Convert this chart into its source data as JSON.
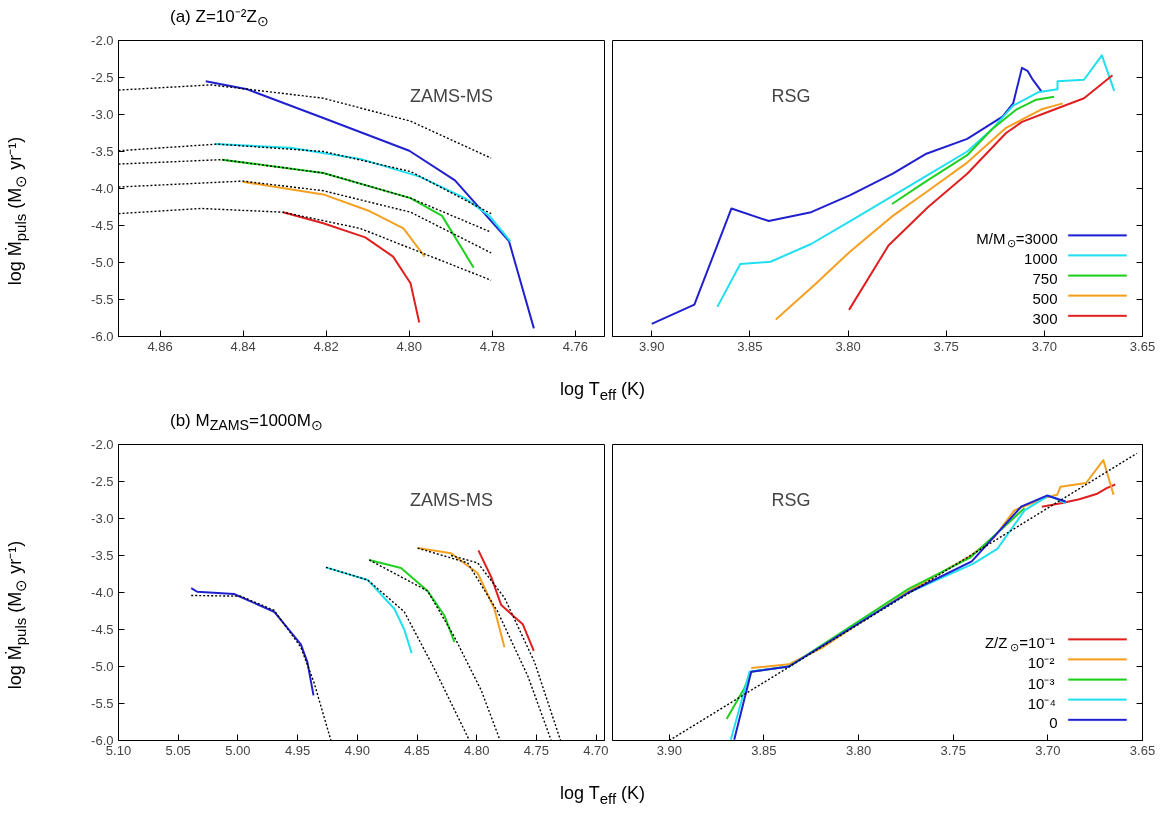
{
  "chart_data": [
    {
      "type": "line",
      "title": "(a) Z=10⁻²Z$_{⊙}$",
      "ylabel": "log Ṁ$_{puls}$ (M$_{⊙}$ yr⁻¹)",
      "annotations": [
        "ZAMS-MS"
      ],
      "grid": false,
      "legend": false,
      "xlim": [
        4.87,
        4.753
      ],
      "xticks": [
        4.86,
        4.84,
        4.82,
        {
          "value": 4.8,
          "label": "4.80"
        },
        4.78,
        4.76
      ],
      "ylim": [
        -6,
        -2
      ],
      "yticks": [
        {
          "value": -6,
          "label": "-6.0"
        },
        -5.5,
        {
          "value": -5,
          "label": "-5.0"
        },
        -4.5,
        {
          "value": -4,
          "label": "-4.0"
        },
        -3.5,
        {
          "value": -3,
          "label": "-3.0"
        },
        -2.5,
        {
          "value": -2,
          "label": "-2.0"
        }
      ],
      "series": [
        {
          "color": "#000000",
          "line_style": "dotted",
          "x": [
            4.87,
            4.8477,
            4.8207,
            4.7997,
            4.7803
          ],
          "values": [
            -2.67,
            -2.6,
            -2.78,
            -3.09,
            -3.59
          ]
        },
        {
          "color": "#000000",
          "line_style": "dotted",
          "x": [
            4.87,
            4.8462,
            4.8207,
            4.7997,
            4.7803
          ],
          "values": [
            -3.49,
            -3.4,
            -3.5,
            -3.77,
            -4.34
          ]
        },
        {
          "color": "#000000",
          "line_style": "dotted",
          "x": [
            4.87,
            4.8451,
            4.8207,
            4.7997,
            4.7803
          ],
          "values": [
            -3.67,
            -3.61,
            -3.79,
            -4.13,
            -4.59
          ]
        },
        {
          "color": "#000000",
          "line_style": "dotted",
          "x": [
            4.87,
            4.8401,
            4.8207,
            4.7997,
            4.7803
          ],
          "values": [
            -3.98,
            -3.9,
            -4.03,
            -4.32,
            -4.87
          ]
        },
        {
          "color": "#000000",
          "line_style": "dotted",
          "x": [
            4.87,
            4.8502,
            4.8304,
            4.8118,
            4.7803
          ],
          "values": [
            -4.34,
            -4.27,
            -4.32,
            -4.54,
            -5.24
          ]
        },
        {
          "color": "#2020d0",
          "x": [
            4.849,
            4.839,
            4.821,
            4.8,
            4.789,
            4.776,
            4.77
          ],
          "values": [
            -2.55,
            -2.66,
            -3.04,
            -3.49,
            -3.89,
            -4.71,
            -5.89
          ]
        },
        {
          "color": "#20e0f0",
          "x": [
            4.8467,
            4.8286,
            4.8118,
            4.7975,
            4.7866,
            4.7807,
            4.7757
          ],
          "values": [
            -3.4,
            -3.45,
            -3.6,
            -3.84,
            -4.13,
            -4.37,
            -4.71
          ]
        },
        {
          "color": "#20d020",
          "x": [
            4.8451,
            4.8207,
            4.7997,
            4.7921,
            4.7845
          ],
          "values": [
            -3.61,
            -3.79,
            -4.13,
            -4.37,
            -5.07
          ]
        },
        {
          "color": "#f5a020",
          "x": [
            4.8401,
            4.8207,
            4.8098,
            4.8014,
            4.7963
          ],
          "values": [
            -3.91,
            -4.08,
            -4.3,
            -4.54,
            -4.92
          ]
        },
        {
          "color": "#e02020",
          "x": [
            4.8304,
            4.8207,
            4.8106,
            4.8039,
            4.7997,
            4.7976
          ],
          "values": [
            -4.32,
            -4.47,
            -4.66,
            -4.92,
            -5.28,
            -5.81
          ]
        }
      ]
    },
    {
      "type": "line",
      "xlabel": "log T$_{eff}$ (K)",
      "annotations": [
        "RSG"
      ],
      "grid": false,
      "legend": "bottom right",
      "tick_labels": "x",
      "xlim": [
        3.92,
        3.65
      ],
      "xticks": [
        {
          "value": 3.9,
          "label": "3.90"
        },
        3.85,
        {
          "value": 3.8,
          "label": "3.80"
        },
        3.75,
        {
          "value": 3.7,
          "label": "3.70"
        },
        3.65
      ],
      "ylim": [
        -6,
        -2
      ],
      "yticks": [
        {
          "value": -6,
          "label": null
        },
        {
          "value": -5.5,
          "label": null
        },
        {
          "value": -5,
          "label": null
        },
        {
          "value": -4.5,
          "label": null
        },
        {
          "value": -4,
          "label": null
        },
        {
          "value": -3.5,
          "label": null
        },
        {
          "value": -3,
          "label": null
        },
        {
          "value": -2.5,
          "label": null
        },
        {
          "value": -2,
          "label": null
        }
      ],
      "series": [
        {
          "name": "M/M$_{⊙}$=3000",
          "color": "#2020d0",
          "x": [
            3.9,
            3.8783,
            3.8594,
            3.8404,
            3.8188,
            3.7989,
            3.7772,
            3.7601,
            3.7393,
            3.7213,
            3.7159,
            3.7114,
            3.7086,
            3.7059,
            3.7014
          ],
          "values": [
            -5.83,
            -5.57,
            -4.27,
            -4.44,
            -4.32,
            -4.09,
            -3.8,
            -3.53,
            -3.33,
            -3.03,
            -2.85,
            -2.37,
            -2.41,
            -2.53,
            -2.69
          ]
        },
        {
          "name": "1000",
          "color": "#20e0f0",
          "x": [
            3.8666,
            3.8549,
            3.8395,
            3.8188,
            3.7989,
            3.7772,
            3.7601,
            3.7393,
            3.7267,
            3.7159,
            3.7032,
            3.6933,
            3.6933,
            3.6798,
            3.6707,
            3.6644
          ],
          "values": [
            -5.6,
            -5.02,
            -4.99,
            -4.75,
            -4.44,
            -4.1,
            -3.83,
            -3.5,
            -3.2,
            -2.88,
            -2.7,
            -2.66,
            -2.55,
            -2.53,
            -2.2,
            -2.68
          ]
        },
        {
          "name": "750",
          "color": "#20d020",
          "x": [
            3.7776,
            3.7601,
            3.7393,
            3.7267,
            3.7141,
            3.7041,
            3.6951
          ],
          "values": [
            -4.21,
            -3.9,
            -3.55,
            -3.2,
            -2.93,
            -2.8,
            -2.76
          ]
        },
        {
          "name": "500",
          "color": "#f5a020",
          "x": [
            3.8368,
            3.817,
            3.7989,
            3.7772,
            3.7592,
            3.7393,
            3.7195,
            3.7014,
            3.6906
          ],
          "values": [
            -5.77,
            -5.3,
            -4.85,
            -4.37,
            -4.03,
            -3.65,
            -3.18,
            -2.93,
            -2.85
          ]
        },
        {
          "name": "300",
          "color": "#e02020",
          "x": [
            3.7995,
            3.7794,
            3.7592,
            3.7393,
            3.7195,
            3.7114,
            3.6996,
            3.6798,
            3.6653
          ],
          "values": [
            -5.64,
            -4.77,
            -4.25,
            -3.8,
            -3.25,
            -3.1,
            -2.98,
            -2.78,
            -2.47
          ]
        }
      ]
    },
    {
      "type": "line",
      "title": "(b) M$_{ZAMS}$=1000M$_{⊙}$",
      "ylabel": "log Ṁ$_{puls}$ (M$_{⊙}$ yr⁻¹)",
      "annotations": [
        "ZAMS-MS"
      ],
      "grid": false,
      "legend": false,
      "xlim": [
        5.1,
        4.693
      ],
      "xticks": [
        {
          "value": 5.1,
          "label": "5.10"
        },
        5.05,
        {
          "value": 5.0,
          "label": "5.00"
        },
        4.95,
        {
          "value": 4.9,
          "label": "4.90"
        },
        4.85,
        {
          "value": 4.8,
          "label": "4.80"
        },
        4.75,
        {
          "value": 4.7,
          "label": "4.70"
        }
      ],
      "ylim": [
        -6,
        -2
      ],
      "yticks": [
        {
          "value": -6,
          "label": "-6.0"
        },
        -5.5,
        {
          "value": -5,
          "label": "-5.0"
        },
        -4.5,
        {
          "value": -4,
          "label": "-4.0"
        },
        -3.5,
        {
          "value": -3,
          "label": "-3.0"
        },
        -2.5,
        {
          "value": -2,
          "label": "-2.0"
        }
      ],
      "series": [
        {
          "color": "#000000",
          "line_style": "dotted",
          "x": [
            5.0391,
            4.9977,
            4.9697,
            4.9473,
            4.9362,
            4.9221
          ],
          "values": [
            -4.04,
            -4.05,
            -4.24,
            -4.74,
            -5.22,
            -6.0
          ]
        },
        {
          "color": "#000000",
          "line_style": "dotted",
          "x": [
            4.9263,
            4.8914,
            4.8607,
            4.8355,
            4.8061
          ],
          "values": [
            -3.66,
            -3.83,
            -4.26,
            -5.03,
            -6.0
          ]
        },
        {
          "color": "#000000",
          "line_style": "dotted",
          "x": [
            4.89,
            4.8411,
            4.8187,
            4.7963,
            4.7804
          ],
          "values": [
            -3.56,
            -3.98,
            -4.6,
            -5.32,
            -6.0
          ]
        },
        {
          "color": "#000000",
          "line_style": "dotted",
          "x": [
            4.8495,
            4.8076,
            4.7824,
            4.7572,
            4.7376
          ],
          "values": [
            -3.4,
            -3.6,
            -4.26,
            -5.13,
            -6.0
          ]
        },
        {
          "color": "#000000",
          "line_style": "dotted",
          "x": [
            4.8215,
            4.7992,
            4.7768,
            4.7516,
            4.7298
          ],
          "values": [
            -3.5,
            -3.6,
            -4.07,
            -4.94,
            -6.0
          ]
        },
        {
          "color": "#2020d0",
          "x": [
            5.0391,
            5.0341,
            5.0033,
            4.9697,
            4.9473,
            4.9418,
            4.9367
          ],
          "values": [
            -3.94,
            -3.99,
            -4.02,
            -4.26,
            -4.7,
            -4.94,
            -5.39
          ]
        },
        {
          "color": "#20e0f0",
          "x": [
            4.9263,
            4.8914,
            4.869,
            4.8607,
            4.8545
          ],
          "values": [
            -3.66,
            -3.83,
            -4.22,
            -4.5,
            -4.82
          ]
        },
        {
          "color": "#20d020",
          "x": [
            4.89,
            4.8634,
            4.8411,
            4.8271,
            4.8187
          ],
          "values": [
            -3.56,
            -3.67,
            -3.98,
            -4.31,
            -4.67
          ]
        },
        {
          "color": "#f5a020",
          "x": [
            4.8495,
            4.8215,
            4.7992,
            4.7852,
            4.7768
          ],
          "values": [
            -3.4,
            -3.47,
            -3.74,
            -4.22,
            -4.74
          ]
        },
        {
          "color": "#e02020",
          "x": [
            4.7986,
            4.7879,
            4.7795,
            4.7698,
            4.7614,
            4.7522
          ],
          "values": [
            -3.43,
            -3.79,
            -4.17,
            -4.31,
            -4.43,
            -4.79
          ]
        }
      ]
    },
    {
      "type": "line",
      "xlabel": "log T$_{eff}$ (K)",
      "annotations": [
        "RSG"
      ],
      "grid": false,
      "legend": "bottom right",
      "tick_labels": "x",
      "xlim": [
        3.93,
        3.65
      ],
      "xticks": [
        {
          "value": 3.9,
          "label": "3.90"
        },
        3.85,
        {
          "value": 3.8,
          "label": "3.80"
        },
        3.75,
        {
          "value": 3.7,
          "label": "3.70"
        },
        3.65
      ],
      "ylim": [
        -6,
        -2
      ],
      "yticks": [
        {
          "value": -6,
          "label": null
        },
        {
          "value": -5.5,
          "label": null
        },
        {
          "value": -5,
          "label": null
        },
        {
          "value": -4.5,
          "label": null
        },
        {
          "value": -4,
          "label": null
        },
        {
          "value": -3.5,
          "label": null
        },
        {
          "value": -3,
          "label": null
        },
        {
          "value": -2.5,
          "label": null
        },
        {
          "value": -2,
          "label": null
        }
      ],
      "series": [
        {
          "color": "#000000",
          "line_style": "dotted",
          "x": [
            3.9,
            3.653
          ],
          "values": [
            -6.0,
            -2.12
          ]
        },
        {
          "name": "Z/Z$_{⊙}$=10⁻¹",
          "color": "#e02020",
          "x": [
            3.7032,
            3.6924,
            3.6834,
            3.6743,
            3.6689,
            3.6644
          ],
          "values": [
            -2.84,
            -2.79,
            -2.74,
            -2.67,
            -2.59,
            -2.54
          ]
        },
        {
          "name": "10⁻²",
          "color": "#f5a020",
          "x": [
            3.8567,
            3.8368,
            3.8188,
            3.7736,
            3.7411,
            3.7285,
            3.7177,
            3.7014,
            3.6951,
            3.6933,
            3.6798,
            3.6707,
            3.6653
          ],
          "values": [
            -5.02,
            -4.97,
            -4.74,
            -3.98,
            -3.51,
            -3.26,
            -2.89,
            -2.72,
            -2.68,
            -2.57,
            -2.52,
            -2.21,
            -2.68
          ]
        },
        {
          "name": "10⁻³",
          "color": "#20d020",
          "x": [
            3.8697,
            3.8603,
            3.8567,
            3.8368,
            3.7736,
            3.7411,
            3.7123
          ],
          "values": [
            -5.71,
            -5.29,
            -5.07,
            -5.0,
            -3.95,
            -3.53,
            -2.86
          ]
        },
        {
          "name": "10⁻⁴",
          "color": "#20e0f0",
          "x": [
            3.8675,
            3.8576,
            3.8368,
            3.7736,
            3.7393,
            3.7267,
            3.7123,
            3.6996,
            3.6906
          ],
          "values": [
            -5.99,
            -5.07,
            -5.0,
            -4.0,
            -3.61,
            -3.41,
            -2.89,
            -2.69,
            -2.79
          ]
        },
        {
          "name": "0",
          "color": "#2020d0",
          "x": [
            3.8657,
            3.8567,
            3.8368,
            3.7736,
            3.7402,
            3.7141,
            3.7005,
            3.6906
          ],
          "values": [
            -5.99,
            -5.07,
            -5.0,
            -4.0,
            -3.58,
            -2.84,
            -2.69,
            -2.77
          ]
        }
      ]
    }
  ]
}
